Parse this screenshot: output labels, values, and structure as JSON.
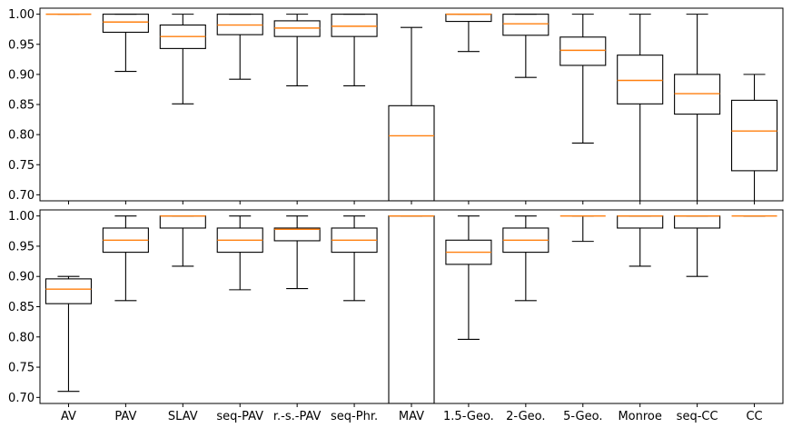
{
  "chart_data": [
    {
      "type": "box",
      "categories": [
        "AV",
        "PAV",
        "SLAV",
        "seq-PAV",
        "r.-s.-PAV",
        "seq-Phr.",
        "MAV",
        "1.5-Geo.",
        "2-Geo.",
        "5-Geo.",
        "Monroe",
        "seq-CC",
        "CC"
      ],
      "ylim": [
        0.69,
        1.01
      ],
      "yticks": [
        "0.70",
        "0.75",
        "0.80",
        "0.85",
        "0.90",
        "0.95",
        "1.00"
      ],
      "grid": false,
      "median_color": "#ff7f0e",
      "box_color": "#000000",
      "boxes": [
        {
          "whislo": 1.0,
          "q1": 1.0,
          "med": 1.0,
          "q3": 1.0,
          "whishi": 1.0
        },
        {
          "whislo": 0.905,
          "q1": 0.97,
          "med": 0.987,
          "q3": 1.0,
          "whishi": 1.0
        },
        {
          "whislo": 0.851,
          "q1": 0.943,
          "med": 0.963,
          "q3": 0.982,
          "whishi": 1.0
        },
        {
          "whislo": 0.892,
          "q1": 0.966,
          "med": 0.982,
          "q3": 1.0,
          "whishi": 1.0
        },
        {
          "whislo": 0.881,
          "q1": 0.963,
          "med": 0.977,
          "q3": 0.989,
          "whishi": 1.0
        },
        {
          "whislo": 0.881,
          "q1": 0.963,
          "med": 0.98,
          "q3": 1.0,
          "whishi": 1.0
        },
        {
          "whislo": 0.69,
          "q1": 0.69,
          "med": 0.798,
          "q3": 0.848,
          "whishi": 0.978
        },
        {
          "whislo": 0.938,
          "q1": 0.988,
          "med": 1.0,
          "q3": 1.0,
          "whishi": 1.0
        },
        {
          "whislo": 0.895,
          "q1": 0.965,
          "med": 0.984,
          "q3": 1.0,
          "whishi": 1.0
        },
        {
          "whislo": 0.786,
          "q1": 0.915,
          "med": 0.94,
          "q3": 0.962,
          "whishi": 1.0
        },
        {
          "whislo": 0.69,
          "q1": 0.851,
          "med": 0.89,
          "q3": 0.932,
          "whishi": 1.0
        },
        {
          "whislo": 0.69,
          "q1": 0.834,
          "med": 0.868,
          "q3": 0.9,
          "whishi": 1.0
        },
        {
          "whislo": 0.69,
          "q1": 0.74,
          "med": 0.806,
          "q3": 0.857,
          "whishi": 0.9
        }
      ]
    },
    {
      "type": "box",
      "categories": [
        "AV",
        "PAV",
        "SLAV",
        "seq-PAV",
        "r.-s.-PAV",
        "seq-Phr.",
        "MAV",
        "1.5-Geo.",
        "2-Geo.",
        "5-Geo.",
        "Monroe",
        "seq-CC",
        "CC"
      ],
      "ylim": [
        0.69,
        1.01
      ],
      "yticks": [
        "0.70",
        "0.75",
        "0.80",
        "0.85",
        "0.90",
        "0.95",
        "1.00"
      ],
      "grid": false,
      "median_color": "#ff7f0e",
      "box_color": "#000000",
      "boxes": [
        {
          "whislo": 0.71,
          "q1": 0.855,
          "med": 0.879,
          "q3": 0.896,
          "whishi": 0.9
        },
        {
          "whislo": 0.86,
          "q1": 0.94,
          "med": 0.96,
          "q3": 0.98,
          "whishi": 1.0
        },
        {
          "whislo": 0.917,
          "q1": 0.98,
          "med": 1.0,
          "q3": 1.0,
          "whishi": 1.0
        },
        {
          "whislo": 0.878,
          "q1": 0.94,
          "med": 0.96,
          "q3": 0.98,
          "whishi": 1.0
        },
        {
          "whislo": 0.88,
          "q1": 0.959,
          "med": 0.978,
          "q3": 0.98,
          "whishi": 1.0
        },
        {
          "whislo": 0.86,
          "q1": 0.94,
          "med": 0.96,
          "q3": 0.98,
          "whishi": 1.0
        },
        {
          "whislo": 0.69,
          "q1": 0.69,
          "med": 1.0,
          "q3": 1.0,
          "whishi": 1.0
        },
        {
          "whislo": 0.796,
          "q1": 0.92,
          "med": 0.94,
          "q3": 0.96,
          "whishi": 1.0
        },
        {
          "whislo": 0.86,
          "q1": 0.94,
          "med": 0.96,
          "q3": 0.98,
          "whishi": 1.0
        },
        {
          "whislo": 0.958,
          "q1": 1.0,
          "med": 1.0,
          "q3": 1.0,
          "whishi": 1.0
        },
        {
          "whislo": 0.917,
          "q1": 0.98,
          "med": 1.0,
          "q3": 1.0,
          "whishi": 1.0
        },
        {
          "whislo": 0.9,
          "q1": 0.98,
          "med": 1.0,
          "q3": 1.0,
          "whishi": 1.0
        },
        {
          "whislo": 1.0,
          "q1": 1.0,
          "med": 1.0,
          "q3": 1.0,
          "whishi": 1.0
        }
      ]
    }
  ]
}
